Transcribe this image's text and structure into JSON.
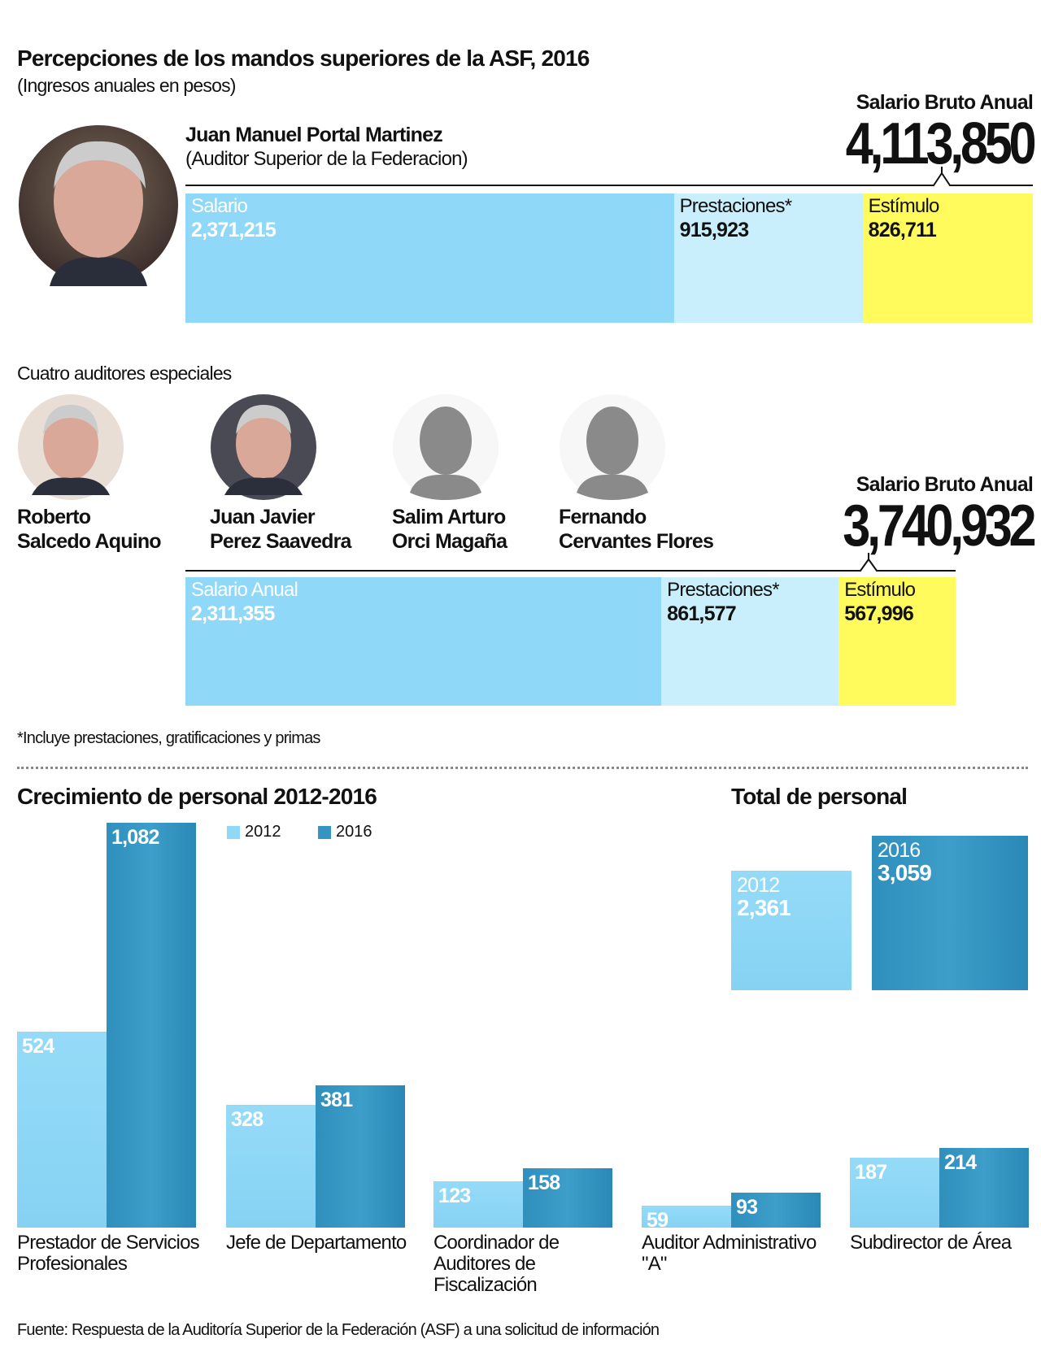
{
  "title": "Percepciones de los mandos superiores de la ASF, 2016",
  "subtitle": "(Ingresos anuales en pesos)",
  "auditor_superior": {
    "name": "Juan Manuel Portal Martinez",
    "role": "(Auditor Superior de la Federacion)",
    "total_label": "Salario Bruto Anual",
    "total": "4,113,850",
    "segments": [
      {
        "label": "Salario",
        "value": "2,371,215",
        "amount": 2371215
      },
      {
        "label": "Prestaciones*",
        "value": "915,923",
        "amount": 915923
      },
      {
        "label": "Estímulo",
        "value": "826,711",
        "amount": 826711
      }
    ]
  },
  "especiales": {
    "heading": "Cuatro auditores especiales",
    "people": [
      {
        "line1": "Roberto",
        "line2": "Salcedo Aquino"
      },
      {
        "line1": "Juan Javier",
        "line2": "Perez Saavedra"
      },
      {
        "line1": "Salim Arturo",
        "line2": "Orci Magaña"
      },
      {
        "line1": "Fernando",
        "line2": "Cervantes Flores"
      }
    ],
    "total_label": "Salario Bruto Anual",
    "total": "3,740,932",
    "segments": [
      {
        "label": "Salario Anual",
        "value": "2,311,355",
        "amount": 2311355
      },
      {
        "label": "Prestaciones*",
        "value": "861,577",
        "amount": 861577
      },
      {
        "label": "Estímulo",
        "value": "567,996",
        "amount": 567996
      }
    ]
  },
  "footnote": "*Incluye prestaciones, gratificaciones y primas",
  "colors": {
    "light": "#8fd8f7",
    "dark": "#3494c2",
    "prest": "#c9eefc",
    "estimulo": "#fffb5c"
  },
  "chart_data": [
    {
      "type": "bar",
      "title": "Crecimiento de personal 2012-2016",
      "legend": [
        "2012",
        "2016"
      ],
      "categories": [
        "Prestador de Servicios Profesionales",
        "Jefe de Departamento",
        "Coordinador de Auditores de Fiscalización",
        "Auditor Administrativo \"A\"",
        "Subdirector de Área"
      ],
      "series": [
        {
          "name": "2012",
          "values": [
            524,
            328,
            123,
            59,
            187
          ],
          "labels": [
            "524",
            "328",
            "123",
            "59",
            "187"
          ]
        },
        {
          "name": "2016",
          "values": [
            1082,
            381,
            158,
            93,
            214
          ],
          "labels": [
            "1,082",
            "381",
            "158",
            "93",
            "214"
          ]
        }
      ],
      "ylim": [
        0,
        1082
      ]
    },
    {
      "type": "bar",
      "title": "Total de personal",
      "categories": [
        "2012",
        "2016"
      ],
      "values": [
        2361,
        3059
      ],
      "labels": [
        "2,361",
        "3,059"
      ]
    }
  ],
  "source": "Fuente: Respuesta de la Auditoría Superior de la Federación (ASF) a una solicitud de información"
}
